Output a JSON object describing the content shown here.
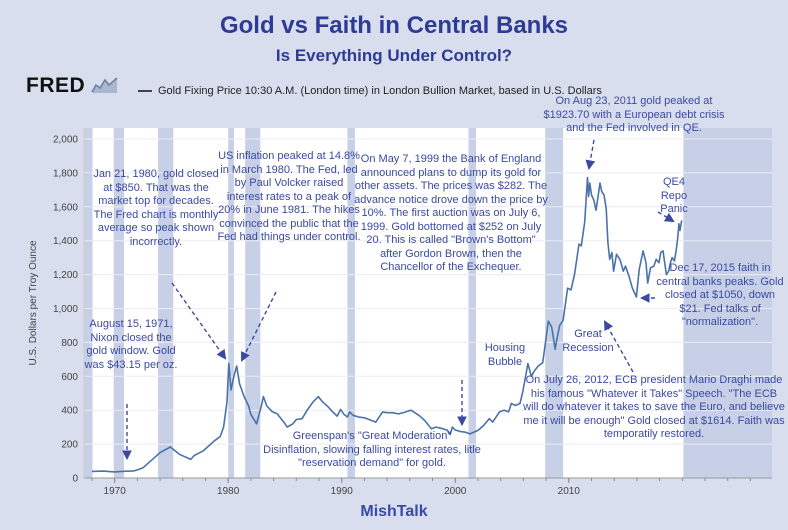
{
  "header": {
    "title": "Gold vs Faith in Central Banks",
    "subtitle": "Is Everything Under Control?",
    "logo": "FRED",
    "legend": "Gold Fixing Price 10:30 A.M. (London time) in London Bullion Market, based in U.S. Dollars"
  },
  "footer": {
    "credit": "MishTalk"
  },
  "colors": {
    "background": "#d9deef",
    "accent": "#2d3b94",
    "annotation": "#3b4aa0",
    "line": "#4a72a9",
    "recession_band": "#c7d0e6"
  },
  "chart_data": {
    "type": "line",
    "title": "Gold vs Faith in Central Banks",
    "subtitle": "Is Everything Under Control?",
    "xlabel": "",
    "ylabel": "U.S. Dollars per Troy Ounce",
    "xlim": [
      1967.3,
      2027.9
    ],
    "ylim": [
      0,
      2000
    ],
    "grid": "horizontal-light",
    "legend_position": "top-left",
    "x_ticks": [
      [
        1970,
        "1970"
      ],
      [
        1980,
        "1980"
      ],
      [
        1990,
        "1990"
      ],
      [
        2000,
        "2000"
      ],
      [
        2010,
        "2010"
      ]
    ],
    "y_ticks": [
      [
        0,
        "0"
      ],
      [
        200,
        "200"
      ],
      [
        400,
        "400"
      ],
      [
        600,
        "600"
      ],
      [
        800,
        "800"
      ],
      [
        1000,
        "1,000"
      ],
      [
        1200,
        "1,200"
      ],
      [
        1400,
        "1,400"
      ],
      [
        1600,
        "1,600"
      ],
      [
        1800,
        "1,800"
      ],
      [
        2000,
        "2,000"
      ]
    ],
    "recessions": [
      [
        1969.92,
        1970.83
      ],
      [
        1973.83,
        1975.17
      ],
      [
        1980.0,
        1980.5
      ],
      [
        1981.5,
        1982.83
      ],
      [
        1990.5,
        1991.17
      ],
      [
        2001.17,
        2001.83
      ],
      [
        2007.92,
        2009.5
      ]
    ],
    "no_data_bands": [
      [
        1967.3,
        1968.05
      ],
      [
        2020.1,
        2027.9
      ]
    ],
    "series": [
      {
        "name": "Gold Fixing Price 10:30 A.M. (London time) in London Bullion Market, based in U.S. Dollars",
        "points": [
          [
            1968.0,
            39
          ],
          [
            1969,
            41
          ],
          [
            1970,
            36
          ],
          [
            1971,
            40
          ],
          [
            1971.7,
            42
          ],
          [
            1972,
            48
          ],
          [
            1972.5,
            60
          ],
          [
            1973,
            90
          ],
          [
            1973.5,
            120
          ],
          [
            1974,
            150
          ],
          [
            1974.9,
            183
          ],
          [
            1975.7,
            140
          ],
          [
            1976.7,
            110
          ],
          [
            1977,
            132
          ],
          [
            1977.8,
            160
          ],
          [
            1978.8,
            220
          ],
          [
            1979.3,
            245
          ],
          [
            1979.6,
            300
          ],
          [
            1979.9,
            450
          ],
          [
            1980.05,
            675
          ],
          [
            1980.25,
            520
          ],
          [
            1980.5,
            600
          ],
          [
            1980.75,
            660
          ],
          [
            1981.0,
            557
          ],
          [
            1981.4,
            480
          ],
          [
            1981.8,
            425
          ],
          [
            1982.0,
            375
          ],
          [
            1982.5,
            320
          ],
          [
            1982.9,
            420
          ],
          [
            1983.1,
            480
          ],
          [
            1983.4,
            425
          ],
          [
            1983.9,
            390
          ],
          [
            1984.3,
            380
          ],
          [
            1984.9,
            330
          ],
          [
            1985.2,
            300
          ],
          [
            1985.7,
            320
          ],
          [
            1986,
            345
          ],
          [
            1986.5,
            350
          ],
          [
            1987,
            405
          ],
          [
            1987.5,
            450
          ],
          [
            1987.95,
            480
          ],
          [
            1988.3,
            450
          ],
          [
            1988.8,
            420
          ],
          [
            1989.2,
            390
          ],
          [
            1989.6,
            365
          ],
          [
            1989.9,
            405
          ],
          [
            1990.2,
            375
          ],
          [
            1990.5,
            360
          ],
          [
            1990.7,
            390
          ],
          [
            1991.0,
            370
          ],
          [
            1991.5,
            360
          ],
          [
            1992.0,
            355
          ],
          [
            1992.6,
            340
          ],
          [
            1993.0,
            330
          ],
          [
            1993.6,
            390
          ],
          [
            1994,
            385
          ],
          [
            1994.5,
            385
          ],
          [
            1995,
            378
          ],
          [
            1995.5,
            387
          ],
          [
            1996.1,
            400
          ],
          [
            1996.8,
            370
          ],
          [
            1997.3,
            340
          ],
          [
            1997.9,
            290
          ],
          [
            1998.3,
            300
          ],
          [
            1998.9,
            291
          ],
          [
            1999.3,
            282
          ],
          [
            1999.55,
            256
          ],
          [
            1999.75,
            300
          ],
          [
            2000.0,
            283
          ],
          [
            2000.4,
            275
          ],
          [
            2000.9,
            270
          ],
          [
            2001.3,
            260
          ],
          [
            2001.7,
            272
          ],
          [
            2002.0,
            281
          ],
          [
            2002.5,
            310
          ],
          [
            2003.0,
            350
          ],
          [
            2003.3,
            330
          ],
          [
            2003.9,
            390
          ],
          [
            2004.3,
            400
          ],
          [
            2004.7,
            390
          ],
          [
            2004.95,
            440
          ],
          [
            2005.3,
            428
          ],
          [
            2005.7,
            440
          ],
          [
            2005.95,
            510
          ],
          [
            2006.4,
            675
          ],
          [
            2006.7,
            600
          ],
          [
            2006.95,
            630
          ],
          [
            2007.3,
            660
          ],
          [
            2007.7,
            680
          ],
          [
            2007.95,
            800
          ],
          [
            2008.2,
            925
          ],
          [
            2008.5,
            890
          ],
          [
            2008.8,
            760
          ],
          [
            2008.95,
            820
          ],
          [
            2009.2,
            900
          ],
          [
            2009.5,
            930
          ],
          [
            2009.9,
            1120
          ],
          [
            2010.2,
            1110
          ],
          [
            2010.5,
            1200
          ],
          [
            2010.9,
            1380
          ],
          [
            2011.1,
            1370
          ],
          [
            2011.4,
            1510
          ],
          [
            2011.65,
            1772
          ],
          [
            2011.75,
            1660
          ],
          [
            2011.85,
            1740
          ],
          [
            2012.0,
            1670
          ],
          [
            2012.2,
            1640
          ],
          [
            2012.4,
            1580
          ],
          [
            2012.75,
            1740
          ],
          [
            2012.9,
            1690
          ],
          [
            2013.1,
            1670
          ],
          [
            2013.3,
            1590
          ],
          [
            2013.45,
            1390
          ],
          [
            2013.6,
            1290
          ],
          [
            2013.8,
            1330
          ],
          [
            2013.95,
            1220
          ],
          [
            2014.2,
            1320
          ],
          [
            2014.5,
            1290
          ],
          [
            2014.8,
            1220
          ],
          [
            2015.0,
            1250
          ],
          [
            2015.3,
            1190
          ],
          [
            2015.6,
            1120
          ],
          [
            2015.96,
            1068
          ],
          [
            2016.2,
            1230
          ],
          [
            2016.55,
            1340
          ],
          [
            2016.8,
            1270
          ],
          [
            2016.95,
            1150
          ],
          [
            2017.2,
            1240
          ],
          [
            2017.5,
            1250
          ],
          [
            2017.7,
            1290
          ],
          [
            2017.95,
            1270
          ],
          [
            2018.1,
            1330
          ],
          [
            2018.3,
            1340
          ],
          [
            2018.6,
            1200
          ],
          [
            2018.8,
            1220
          ],
          [
            2018.95,
            1270
          ],
          [
            2019.1,
            1300
          ],
          [
            2019.3,
            1280
          ],
          [
            2019.45,
            1340
          ],
          [
            2019.6,
            1420
          ],
          [
            2019.7,
            1500
          ],
          [
            2019.8,
            1460
          ],
          [
            2019.95,
            1520
          ]
        ]
      }
    ]
  },
  "annotations": [
    {
      "id": "jan-1980",
      "text": "Jan 21, 1980, gold closed at $850. That was the market top for decades. The Fred chart is monthly average so peak shown incorrectly."
    },
    {
      "id": "volcker",
      "text": "US inflation peaked at 14.8% in March 1980. The Fed, led by Paul Volcker raised interest rates to a peak of 20% in June 1981. The hikes convinced the public that the Fed had things under control."
    },
    {
      "id": "nixon",
      "text": "August 15, 1971, Nixon closed the gold window. Gold was $43.15 per oz."
    },
    {
      "id": "browns-bottom",
      "text": "On May 7, 1999 the Bank of England announced plans to dump its gold for other assets. The prices was $282. The advance notice drove down the price by 10%. The first auction  was on July 6, 1999. Gold bottomed at $252 on July 20. This is called \"Brown's Bottom\" after Gordon Brown, then the Chancellor of the Exchequer."
    },
    {
      "id": "aug-2011-peak",
      "text": "On Aug 23, 2011 gold peaked at $1923.70 with a European debt crisis and the Fed involved in QE."
    },
    {
      "id": "qe4-repo-panic",
      "text": "QE4\nRepo\nPanic"
    },
    {
      "id": "dec-2015",
      "text": "Dec 17, 2015 faith in central banks peaks. Gold closed at $1050, down $21. Fed talks of \"normalization\"."
    },
    {
      "id": "housing-bubble",
      "text": "Housing\nBubble"
    },
    {
      "id": "great-recession",
      "text": "Great\nRecession"
    },
    {
      "id": "greenspan",
      "text": "Greenspan's \"Great Moderation\"\nDisinflation, slowing falling interest rates, litle\n\"reservation demand\" for gold."
    },
    {
      "id": "draghi",
      "text": "On July 26, 2012, ECB president Mario Draghi made his famous \"Whatever it Takes\" Speech. \"The ECB will do whatever it takes to save the Euro, and believe me it will be enough\" Gold closed at $1614. Faith was temporatily restored."
    }
  ]
}
